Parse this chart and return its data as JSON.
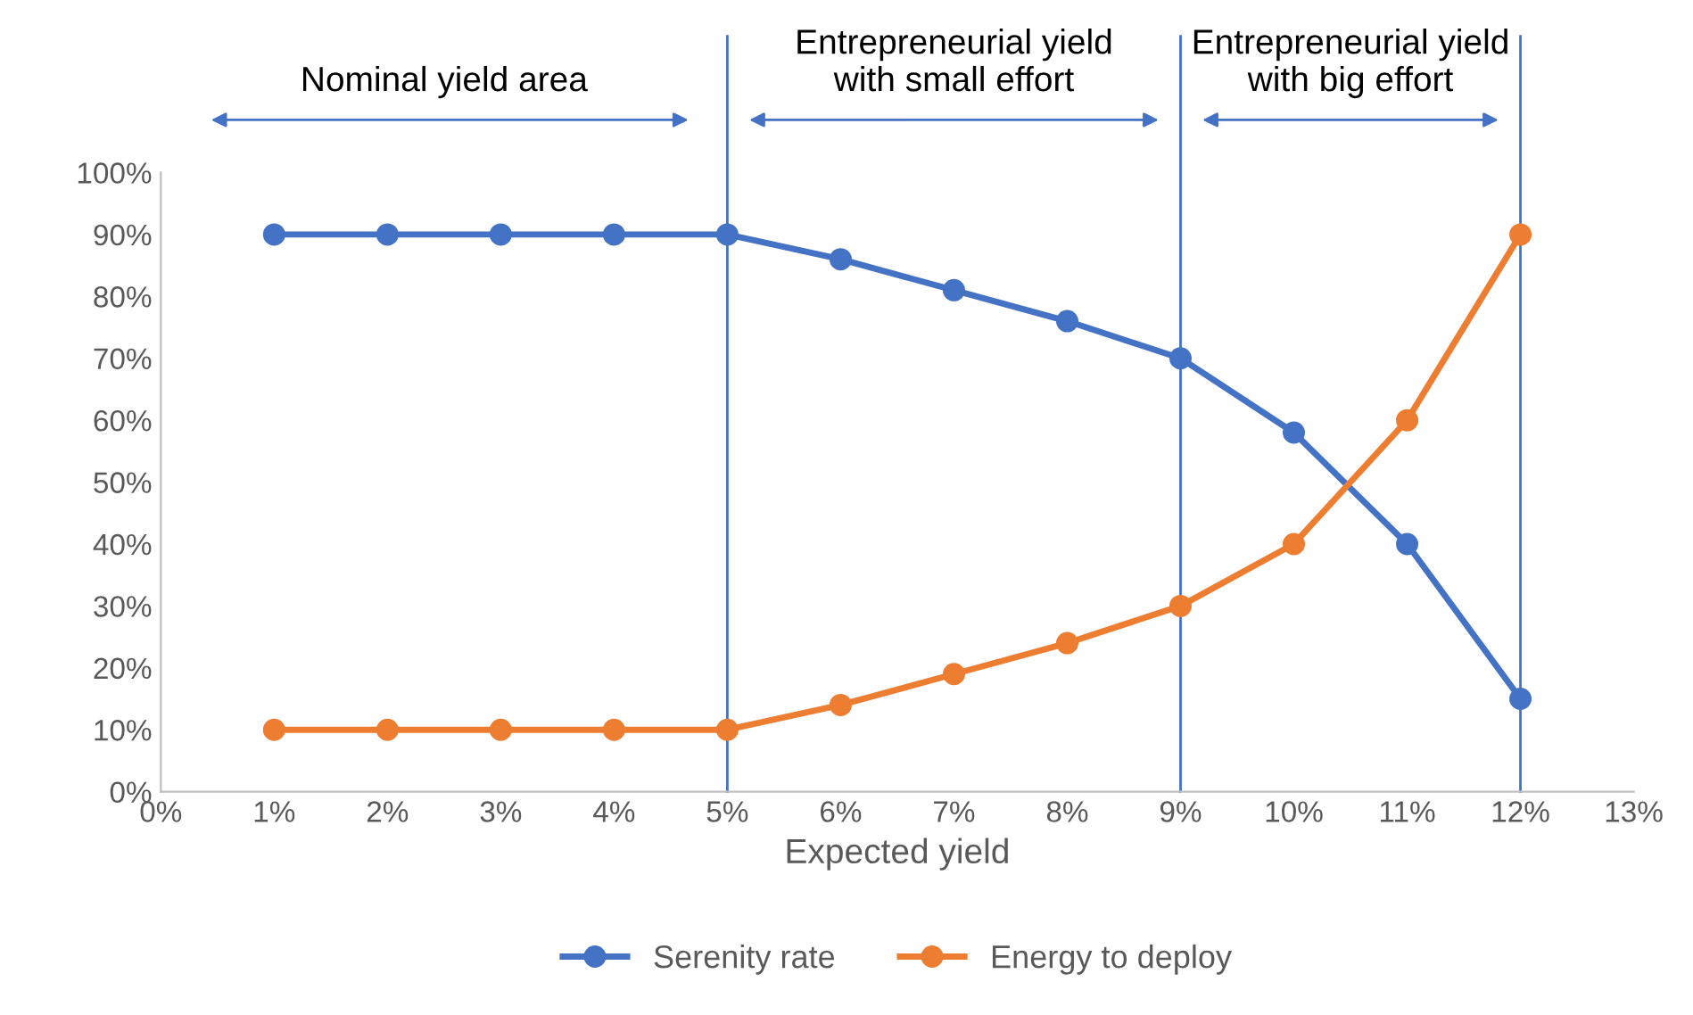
{
  "chart_data": {
    "type": "line",
    "xlabel": "Expected yield",
    "x": [
      1,
      2,
      3,
      4,
      5,
      6,
      7,
      8,
      9,
      10,
      11,
      12
    ],
    "series": [
      {
        "name": "Serenity rate",
        "color": "#4472c4",
        "values": [
          90,
          90,
          90,
          90,
          90,
          86,
          81,
          76,
          70,
          58,
          40,
          15
        ]
      },
      {
        "name": "Energy to deploy",
        "color": "#ed7d31",
        "values": [
          10,
          10,
          10,
          10,
          10,
          14,
          19,
          24,
          30,
          40,
          60,
          90
        ]
      }
    ],
    "xlim": [
      0,
      13
    ],
    "xticks": [
      {
        "value": 0,
        "label": "0%"
      },
      {
        "value": 1,
        "label": "1%"
      },
      {
        "value": 2,
        "label": "2%"
      },
      {
        "value": 3,
        "label": "3%"
      },
      {
        "value": 4,
        "label": "4%"
      },
      {
        "value": 5,
        "label": "5%"
      },
      {
        "value": 6,
        "label": "6%"
      },
      {
        "value": 7,
        "label": "7%"
      },
      {
        "value": 8,
        "label": "8%"
      },
      {
        "value": 9,
        "label": "9%"
      },
      {
        "value": 10,
        "label": "10%"
      },
      {
        "value": 11,
        "label": "11%"
      },
      {
        "value": 12,
        "label": "12%"
      },
      {
        "value": 13,
        "label": "13%"
      }
    ],
    "ylim": [
      0,
      100
    ],
    "yticks": [
      {
        "value": 0,
        "label": "0%"
      },
      {
        "value": 10,
        "label": "10%"
      },
      {
        "value": 20,
        "label": "20%"
      },
      {
        "value": 30,
        "label": "30%"
      },
      {
        "value": 40,
        "label": "40%"
      },
      {
        "value": 50,
        "label": "50%"
      },
      {
        "value": 60,
        "label": "60%"
      },
      {
        "value": 70,
        "label": "70%"
      },
      {
        "value": 80,
        "label": "80%"
      },
      {
        "value": 90,
        "label": "90%"
      },
      {
        "value": 100,
        "label": "100%"
      }
    ],
    "ref_lines": [
      {
        "axis": "x",
        "value": 5,
        "color": "#4472c4"
      },
      {
        "axis": "x",
        "value": 9,
        "color": "#4472c4"
      },
      {
        "axis": "x",
        "value": 12,
        "color": "#4472c4"
      }
    ],
    "annotations": [
      "Nominal yield area",
      "Entrepreneurial yield\nwith small effort",
      "Entrepreneurial yield\nwith big effort"
    ],
    "grid": false,
    "legend": "bottom",
    "marker": "circle",
    "line_style": "solid"
  }
}
